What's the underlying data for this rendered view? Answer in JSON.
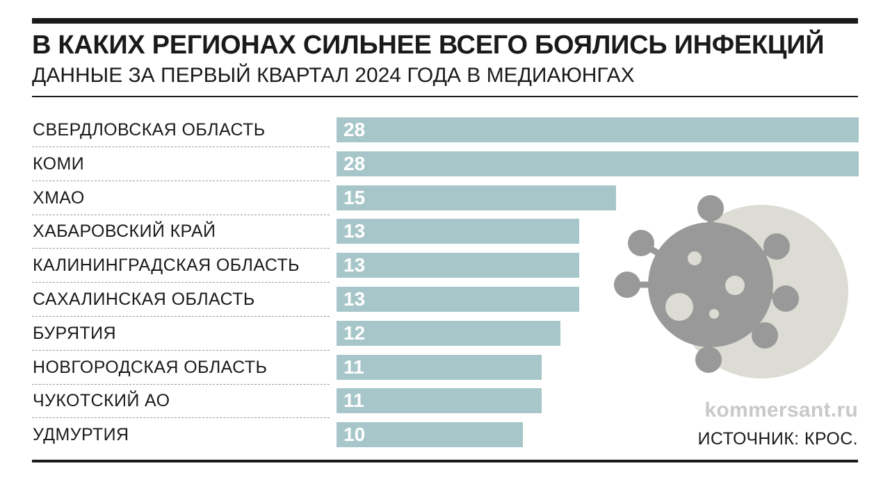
{
  "header": {
    "title": "В КАКИХ РЕГИОНАХ СИЛЬНЕЕ ВСЕГО БОЯЛИСЬ ИНФЕКЦИЙ",
    "subtitle": "ДАННЫЕ ЗА ПЕРВЫЙ КВАРТАЛ 2024 ГОДА В МЕДИАЮНГАХ"
  },
  "footer": {
    "watermark": "kommersant.ru",
    "source": "ИСТОЧНИК: КРОС."
  },
  "colors": {
    "bar": "#a7c6c9",
    "virus_disc": "#dcdcd4",
    "virus_body": "#999999",
    "text": "#1a1a1a"
  },
  "icons": [
    "virus-icon"
  ],
  "chart_data": {
    "type": "bar",
    "orientation": "horizontal",
    "title": "В КАКИХ РЕГИОНАХ СИЛЬНЕЕ ВСЕГО БОЯЛИСЬ ИНФЕКЦИЙ",
    "subtitle": "ДАННЫЕ ЗА ПЕРВЫЙ КВАРТАЛ 2024 ГОДА В МЕДИАЮНГАХ",
    "xlabel": "",
    "ylabel": "",
    "xlim": [
      0,
      28
    ],
    "grid": false,
    "legend": "none",
    "categories": [
      "СВЕРДЛОВСКАЯ ОБЛАСТЬ",
      "КОМИ",
      "ХМАО",
      "ХАБАРОВСКИЙ КРАЙ",
      "КАЛИНИНГРАДСКАЯ ОБЛАСТЬ",
      "САХАЛИНСКАЯ ОБЛАСТЬ",
      "БУРЯТИЯ",
      "НОВГОРОДСКАЯ ОБЛАСТЬ",
      "ЧУКОТСКИЙ АО",
      "УДМУРТИЯ"
    ],
    "values": [
      28,
      28,
      15,
      13,
      13,
      13,
      12,
      11,
      11,
      10
    ]
  }
}
